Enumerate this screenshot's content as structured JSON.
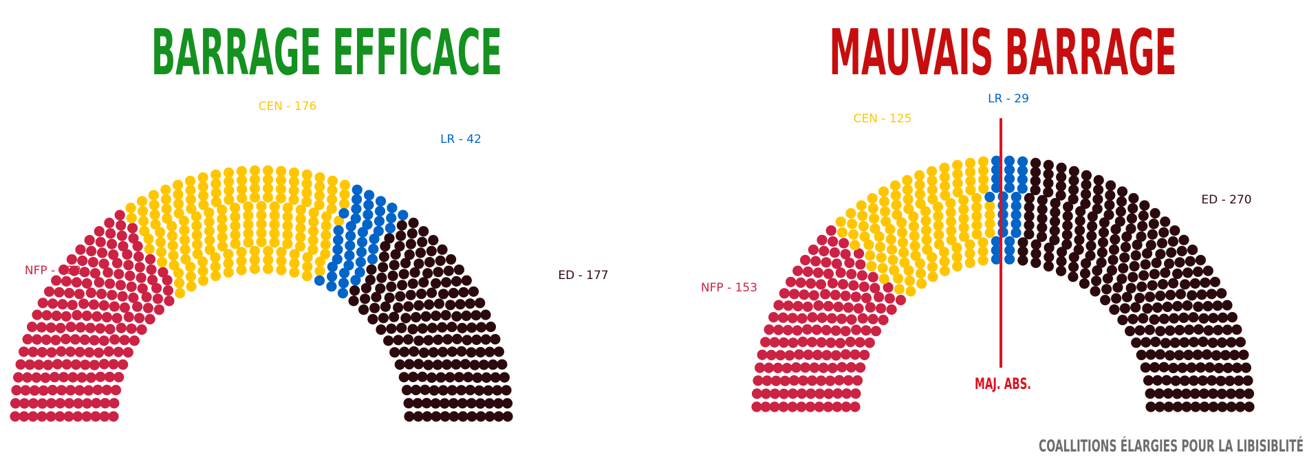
{
  "footer": "COALLITIONS ÉLARGIES POUR LA LIBISIBLITÉ",
  "colors": {
    "good_title": "#14911f",
    "bad_title": "#c70d0d",
    "majority_line": "#e0101e",
    "footer": "#6d6d6d"
  },
  "chart_data": [
    {
      "type": "parliament",
      "title": "BARRAGE EFFICACE",
      "total_seats": 577,
      "series": [
        {
          "name": "NFP",
          "label": "NFP - 182",
          "values": [
            182
          ],
          "color": "#cc2244"
        },
        {
          "name": "CEN",
          "label": "CEN - 176",
          "values": [
            176
          ],
          "color": "#ffc600"
        },
        {
          "name": "LR",
          "label": "LR - 42",
          "values": [
            42
          ],
          "color": "#0064c8"
        },
        {
          "name": "ED",
          "label": "ED - 177",
          "values": [
            177
          ],
          "color": "#2b0a0e"
        }
      ]
    },
    {
      "type": "parliament",
      "title": "MAUVAIS BARRAGE",
      "total_seats": 577,
      "majority_label": "MAJ. ABS.",
      "series": [
        {
          "name": "NFP",
          "label": "NFP - 153",
          "values": [
            153
          ],
          "color": "#cc2244"
        },
        {
          "name": "CEN",
          "label": "CEN - 125",
          "values": [
            125
          ],
          "color": "#ffc600"
        },
        {
          "name": "LR",
          "label": "LR - 29",
          "values": [
            29
          ],
          "color": "#0064c8"
        },
        {
          "name": "ED",
          "label": "ED - 270",
          "values": [
            270
          ],
          "color": "#2b0a0e"
        }
      ]
    }
  ]
}
